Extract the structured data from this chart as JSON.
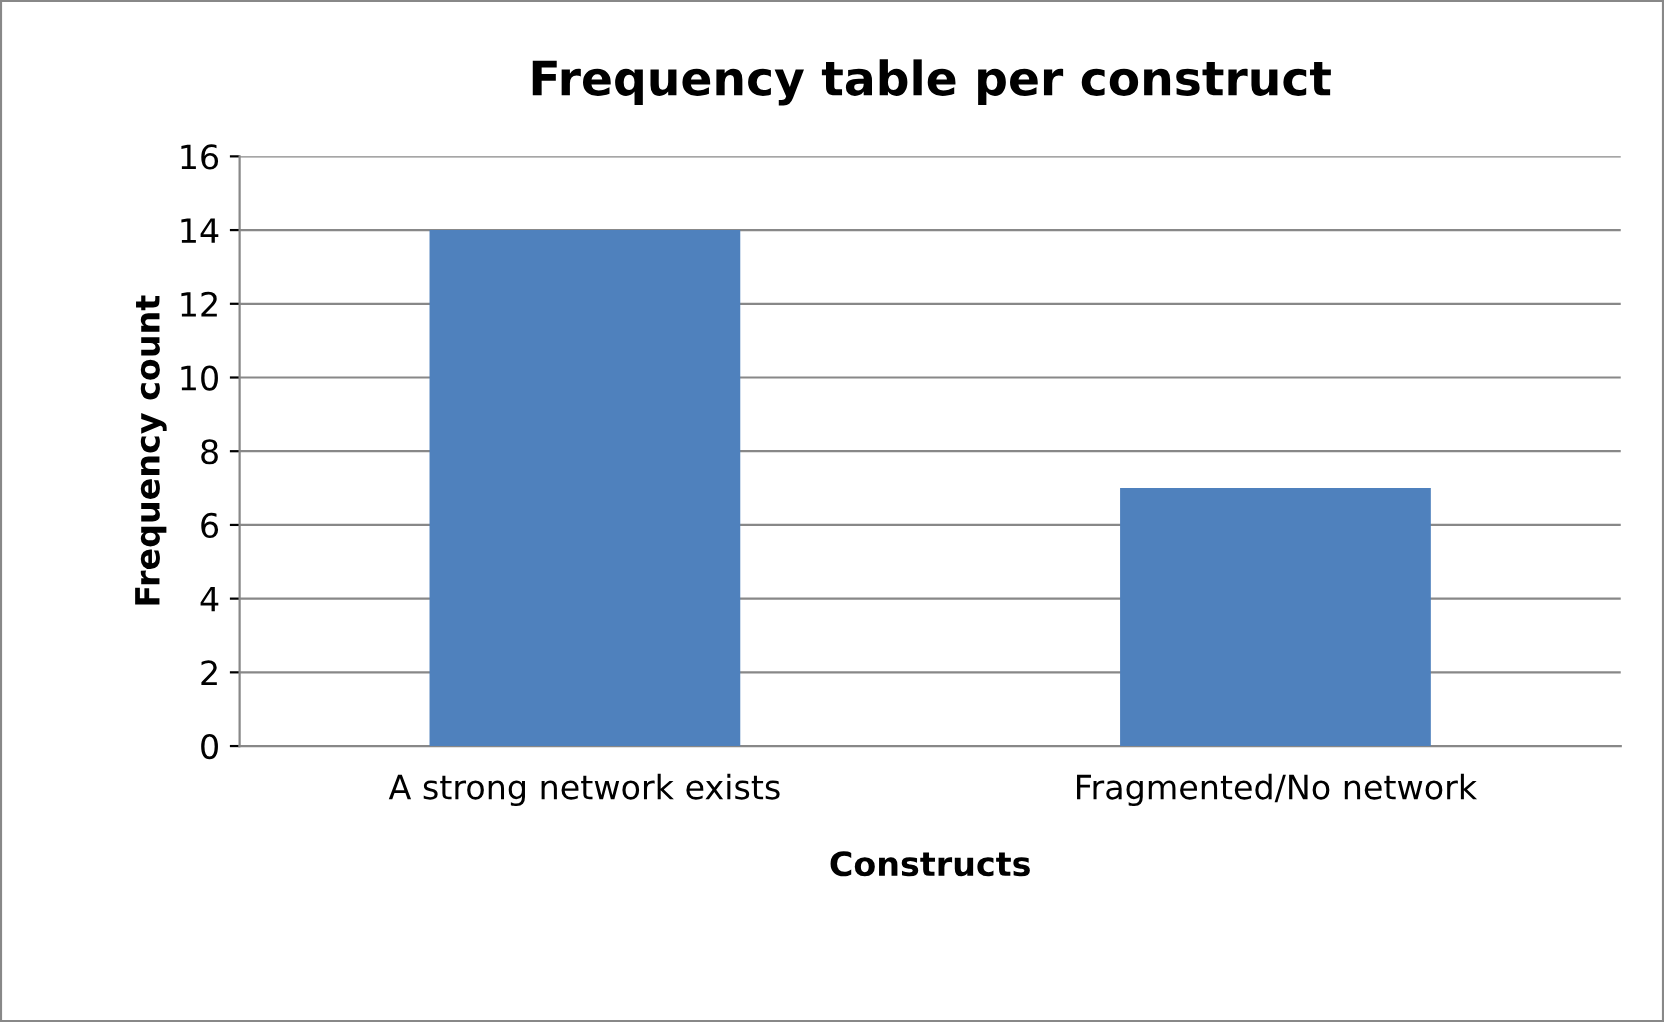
{
  "chart_data": {
    "type": "bar",
    "title": "Frequency table per construct",
    "xlabel": "Constructs",
    "ylabel": "Frequency count",
    "categories": [
      "A strong network exists",
      "Fragmented/No network"
    ],
    "values": [
      14,
      7
    ],
    "color": "#4f81bd",
    "ylim": [
      0,
      16
    ],
    "yticks": [
      0,
      2,
      4,
      6,
      8,
      10,
      12,
      14,
      16
    ],
    "grid": "y",
    "legend": false
  }
}
